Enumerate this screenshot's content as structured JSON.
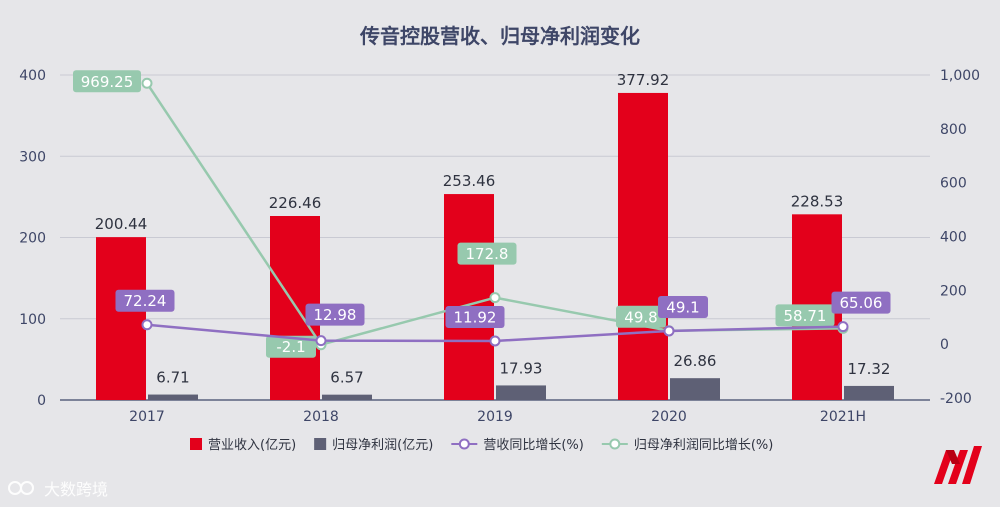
{
  "chart_data": {
    "type": "bar",
    "title": "传音控股营收、归母净利润变化",
    "categories": [
      "2017",
      "2018",
      "2019",
      "2020",
      "2021H"
    ],
    "y_left": {
      "ticks": [
        "400",
        "300",
        "200",
        "100",
        "0"
      ],
      "ylim": [
        0,
        400
      ]
    },
    "y_right": {
      "ticks": [
        "1,000",
        "800",
        "600",
        "400",
        "200",
        "0",
        "-200"
      ],
      "ylim": [
        -200,
        1000
      ]
    },
    "series": [
      {
        "name": "营业收入(亿元)",
        "type": "bar",
        "axis": "left",
        "color": "#e3001b",
        "values": [
          200.44,
          226.46,
          253.46,
          377.92,
          228.53
        ],
        "labels": [
          "200.44",
          "226.46",
          "253.46",
          "377.92",
          "228.53"
        ]
      },
      {
        "name": "归母净利润(亿元)",
        "type": "bar",
        "axis": "left",
        "color": "#5e6075",
        "values": [
          6.71,
          6.57,
          17.93,
          26.86,
          17.32
        ],
        "labels": [
          "6.71",
          "6.57",
          "17.93",
          "26.86",
          "17.32"
        ]
      },
      {
        "name": "营收同比增长(%)",
        "type": "line",
        "axis": "right",
        "color": "#8f6fc2",
        "values": [
          72.24,
          12.98,
          11.92,
          49.1,
          65.06
        ],
        "labels": [
          "72.24",
          "12.98",
          "11.92",
          "49.1",
          "65.06"
        ]
      },
      {
        "name": "归母净利润同比增长(%)",
        "type": "line",
        "axis": "right",
        "color": "#97c9ae",
        "values": [
          969.25,
          -2.1,
          172.8,
          49.8,
          58.71
        ],
        "labels": [
          "969.25",
          "-2.1",
          "172.8",
          "49.8",
          "58.71"
        ]
      }
    ],
    "legend": "bottom",
    "grid": true
  },
  "watermark": {
    "text": "大数跨境"
  }
}
